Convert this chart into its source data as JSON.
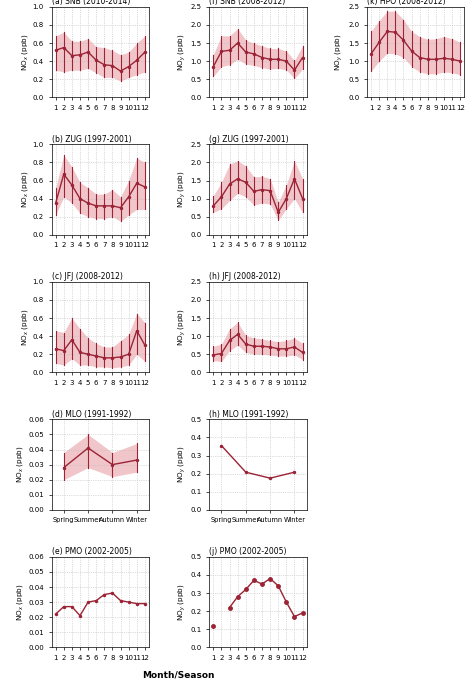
{
  "panels": {
    "a": {
      "title": "(a) SNB (2010-2014)",
      "ylabel": "NO$_x$ (ppb)",
      "xlim": [
        0.5,
        12.5
      ],
      "ylim": [
        0.0,
        1.0
      ],
      "yticks": [
        0.0,
        0.2,
        0.4,
        0.6,
        0.8,
        1.0
      ],
      "xticks": [
        1,
        2,
        3,
        4,
        5,
        6,
        7,
        8,
        9,
        10,
        11,
        12
      ],
      "x": [
        1,
        2,
        3,
        4,
        5,
        6,
        7,
        8,
        9,
        10,
        11,
        12
      ],
      "median": [
        0.52,
        0.55,
        0.46,
        0.47,
        0.5,
        0.41,
        0.36,
        0.35,
        0.29,
        0.34,
        0.41,
        0.5
      ],
      "q25": [
        0.3,
        0.28,
        0.3,
        0.3,
        0.32,
        0.27,
        0.22,
        0.22,
        0.18,
        0.22,
        0.25,
        0.28
      ],
      "q75": [
        0.68,
        0.72,
        0.62,
        0.62,
        0.65,
        0.56,
        0.55,
        0.52,
        0.47,
        0.5,
        0.6,
        0.68
      ],
      "has_shading": true,
      "has_errorbars": true
    },
    "b": {
      "title": "(b) ZUG (1997-2001)",
      "ylabel": "NO$_x$ (ppb)",
      "xlim": [
        0.5,
        12.5
      ],
      "ylim": [
        0.0,
        1.0
      ],
      "yticks": [
        0.0,
        0.2,
        0.4,
        0.6,
        0.8,
        1.0
      ],
      "xticks": [
        1,
        2,
        3,
        4,
        5,
        6,
        7,
        8,
        9,
        10,
        11,
        12
      ],
      "x": [
        1,
        2,
        3,
        4,
        5,
        6,
        7,
        8,
        9,
        10,
        11,
        12
      ],
      "median": [
        0.35,
        0.67,
        0.55,
        0.4,
        0.35,
        0.32,
        0.32,
        0.32,
        0.3,
        0.42,
        0.57,
        0.53
      ],
      "q25": [
        0.22,
        0.42,
        0.35,
        0.24,
        0.2,
        0.18,
        0.18,
        0.2,
        0.15,
        0.22,
        0.28,
        0.28
      ],
      "q75": [
        0.52,
        0.88,
        0.75,
        0.58,
        0.52,
        0.45,
        0.45,
        0.5,
        0.42,
        0.6,
        0.85,
        0.8
      ],
      "has_shading": true,
      "has_errorbars": true
    },
    "c": {
      "title": "(c) JFJ (2008-2012)",
      "ylabel": "NO$_x$ (ppb)",
      "xlim": [
        0.5,
        12.5
      ],
      "ylim": [
        0.0,
        1.0
      ],
      "yticks": [
        0.0,
        0.2,
        0.4,
        0.6,
        0.8,
        1.0
      ],
      "xticks": [
        1,
        2,
        3,
        4,
        5,
        6,
        7,
        8,
        9,
        10,
        11,
        12
      ],
      "x": [
        1,
        2,
        3,
        4,
        5,
        6,
        7,
        8,
        9,
        10,
        11,
        12
      ],
      "median": [
        0.26,
        0.24,
        0.36,
        0.22,
        0.2,
        0.18,
        0.16,
        0.16,
        0.17,
        0.2,
        0.46,
        0.3
      ],
      "q25": [
        0.1,
        0.08,
        0.15,
        0.08,
        0.08,
        0.06,
        0.06,
        0.05,
        0.06,
        0.08,
        0.2,
        0.12
      ],
      "q75": [
        0.46,
        0.44,
        0.6,
        0.48,
        0.38,
        0.32,
        0.28,
        0.28,
        0.35,
        0.42,
        0.65,
        0.55
      ],
      "has_shading": true,
      "has_errorbars": true
    },
    "d": {
      "title": "(d) MLO (1991-1992)",
      "ylabel": "NO$_x$ (ppb)",
      "xlim": [
        -0.5,
        3.5
      ],
      "ylim": [
        0.0,
        0.06
      ],
      "yticks": [
        0.0,
        0.01,
        0.02,
        0.03,
        0.04,
        0.05,
        0.06
      ],
      "xticklabels": [
        "Spring",
        "Summer",
        "Autumn",
        "Winter"
      ],
      "x": [
        0,
        1,
        2,
        3
      ],
      "median": [
        0.028,
        0.041,
        0.03,
        0.033
      ],
      "q25": [
        0.02,
        0.028,
        0.022,
        0.025
      ],
      "q75": [
        0.038,
        0.05,
        0.038,
        0.044
      ],
      "has_shading": true,
      "has_errorbars": true
    },
    "e": {
      "title": "(e) PMO (2002-2005)",
      "ylabel": "NO$_x$ (ppb)",
      "xlim": [
        0.5,
        12.5
      ],
      "ylim": [
        0.0,
        0.06
      ],
      "yticks": [
        0.0,
        0.01,
        0.02,
        0.03,
        0.04,
        0.05,
        0.06
      ],
      "xticks": [
        1,
        2,
        3,
        4,
        5,
        6,
        7,
        8,
        9,
        10,
        11,
        12
      ],
      "x": [
        1,
        2,
        3,
        4,
        5,
        6,
        7,
        8,
        9,
        10,
        11,
        12
      ],
      "median": [
        0.022,
        0.027,
        0.027,
        0.021,
        0.03,
        0.031,
        0.035,
        0.036,
        0.031,
        0.03,
        0.029,
        0.029
      ],
      "q25": null,
      "q75": null,
      "has_shading": false,
      "has_errorbars": false
    },
    "f": {
      "title": "(f) SNB (2008-2012)",
      "ylabel": "NO$_y$ (ppb)",
      "xlim": [
        0.5,
        12.5
      ],
      "ylim": [
        0.0,
        2.5
      ],
      "yticks": [
        0.0,
        0.5,
        1.0,
        1.5,
        2.0,
        2.5
      ],
      "xticks": [
        1,
        2,
        3,
        4,
        5,
        6,
        7,
        8,
        9,
        10,
        11,
        12
      ],
      "x": [
        1,
        2,
        3,
        4,
        5,
        6,
        7,
        8,
        9,
        10,
        11,
        12
      ],
      "median": [
        0.85,
        1.27,
        1.3,
        1.5,
        1.25,
        1.2,
        1.1,
        1.05,
        1.05,
        1.0,
        0.75,
        1.1
      ],
      "q25": [
        0.58,
        0.85,
        0.9,
        1.05,
        0.92,
        0.88,
        0.82,
        0.78,
        0.8,
        0.76,
        0.52,
        0.78
      ],
      "q75": [
        1.18,
        1.7,
        1.7,
        1.9,
        1.58,
        1.5,
        1.42,
        1.35,
        1.35,
        1.28,
        1.02,
        1.42
      ],
      "has_shading": true,
      "has_errorbars": true
    },
    "g": {
      "title": "(g) ZUG (1997-2001)",
      "ylabel": "NO$_y$ (ppb)",
      "xlim": [
        0.5,
        12.5
      ],
      "ylim": [
        0.0,
        2.5
      ],
      "yticks": [
        0.0,
        0.5,
        1.0,
        1.5,
        2.0,
        2.5
      ],
      "xticks": [
        1,
        2,
        3,
        4,
        5,
        6,
        7,
        8,
        9,
        10,
        11,
        12
      ],
      "x": [
        1,
        2,
        3,
        4,
        5,
        6,
        7,
        8,
        9,
        10,
        11,
        12
      ],
      "median": [
        0.8,
        1.05,
        1.4,
        1.55,
        1.45,
        1.2,
        1.25,
        1.22,
        0.62,
        1.0,
        1.55,
        1.0
      ],
      "q25": [
        0.62,
        0.72,
        0.95,
        1.15,
        1.05,
        0.82,
        0.88,
        0.85,
        0.4,
        0.72,
        1.0,
        0.62
      ],
      "q75": [
        1.08,
        1.45,
        1.95,
        2.05,
        1.9,
        1.6,
        1.62,
        1.55,
        0.9,
        1.38,
        2.05,
        1.55
      ],
      "has_shading": true,
      "has_errorbars": true
    },
    "h": {
      "title": "(h) JFJ (2008-2012)",
      "ylabel": "NO$_y$ (ppb)",
      "xlim": [
        0.5,
        12.5
      ],
      "ylim": [
        0.0,
        2.5
      ],
      "yticks": [
        0.0,
        0.5,
        1.0,
        1.5,
        2.0,
        2.5
      ],
      "xticks": [
        1,
        2,
        3,
        4,
        5,
        6,
        7,
        8,
        9,
        10,
        11,
        12
      ],
      "x": [
        1,
        2,
        3,
        4,
        5,
        6,
        7,
        8,
        9,
        10,
        11,
        12
      ],
      "median": [
        0.48,
        0.52,
        0.88,
        1.05,
        0.78,
        0.72,
        0.72,
        0.7,
        0.65,
        0.65,
        0.7,
        0.55
      ],
      "q25": [
        0.32,
        0.3,
        0.6,
        0.75,
        0.55,
        0.5,
        0.5,
        0.48,
        0.45,
        0.45,
        0.48,
        0.35
      ],
      "q75": [
        0.72,
        0.78,
        1.2,
        1.38,
        1.02,
        0.95,
        0.92,
        0.88,
        0.85,
        0.88,
        0.95,
        0.8
      ],
      "has_shading": true,
      "has_errorbars": true
    },
    "i": {
      "title": "(h) MLO (1991-1992)",
      "ylabel": "NO$_y$ (ppb)",
      "xlim": [
        -0.5,
        3.5
      ],
      "ylim": [
        0.0,
        0.5
      ],
      "yticks": [
        0.0,
        0.1,
        0.2,
        0.3,
        0.4,
        0.5
      ],
      "xticklabels": [
        "Spring",
        "Summer",
        "Autumn",
        "Winter"
      ],
      "x": [
        0,
        1,
        2,
        3
      ],
      "median": [
        0.355,
        0.208,
        0.175,
        0.208
      ],
      "q25": null,
      "q75": null,
      "has_shading": false,
      "has_errorbars": false
    },
    "j": {
      "title": "(j) PMO (2002-2005)",
      "ylabel": "NO$_y$ (ppb)",
      "xlim": [
        0.5,
        12.5
      ],
      "ylim": [
        0.0,
        0.5
      ],
      "yticks": [
        0.0,
        0.1,
        0.2,
        0.3,
        0.4,
        0.5
      ],
      "xticks": [
        1,
        2,
        3,
        4,
        5,
        6,
        7,
        8,
        9,
        10,
        11,
        12
      ],
      "x_segments": [
        [
          1
        ],
        [
          3,
          4,
          5,
          6,
          7,
          8,
          9,
          10,
          11,
          12
        ]
      ],
      "median_segments": [
        [
          0.12
        ],
        [
          0.22,
          0.28,
          0.32,
          0.37,
          0.35,
          0.38,
          0.34,
          0.25,
          0.17,
          0.19
        ]
      ],
      "q25": null,
      "q75": null,
      "has_shading": false,
      "has_errorbars": false
    },
    "k": {
      "title": "(k) HPO (2008-2012)",
      "ylabel": "NO$_y$ (ppb)",
      "xlim": [
        0.5,
        12.5
      ],
      "ylim": [
        0.0,
        2.5
      ],
      "yticks": [
        0.0,
        0.5,
        1.0,
        1.5,
        2.0,
        2.5
      ],
      "xticks": [
        1,
        2,
        3,
        4,
        5,
        6,
        7,
        8,
        9,
        10,
        11,
        12
      ],
      "x": [
        1,
        2,
        3,
        4,
        5,
        6,
        7,
        8,
        9,
        10,
        11,
        12
      ],
      "median": [
        1.2,
        1.52,
        1.82,
        1.8,
        1.58,
        1.28,
        1.1,
        1.05,
        1.05,
        1.08,
        1.05,
        1.0
      ],
      "q25": [
        0.72,
        1.0,
        1.22,
        1.2,
        1.1,
        0.85,
        0.7,
        0.65,
        0.65,
        0.7,
        0.68,
        0.62
      ],
      "q75": [
        1.82,
        2.12,
        2.38,
        2.38,
        2.15,
        1.82,
        1.68,
        1.6,
        1.62,
        1.68,
        1.62,
        1.52
      ],
      "has_shading": true,
      "has_errorbars": true
    }
  },
  "line_color": "#9B2335",
  "fill_color": "#E8A0A8",
  "fill_alpha": 0.6,
  "marker": "o",
  "marker_size": 2.5,
  "line_width": 1.0,
  "errorbar_lw": 0.8,
  "xlabel": "Month/Season",
  "background_color": "#ffffff",
  "grid_color": "#bbbbbb",
  "grid_linestyle": ":"
}
